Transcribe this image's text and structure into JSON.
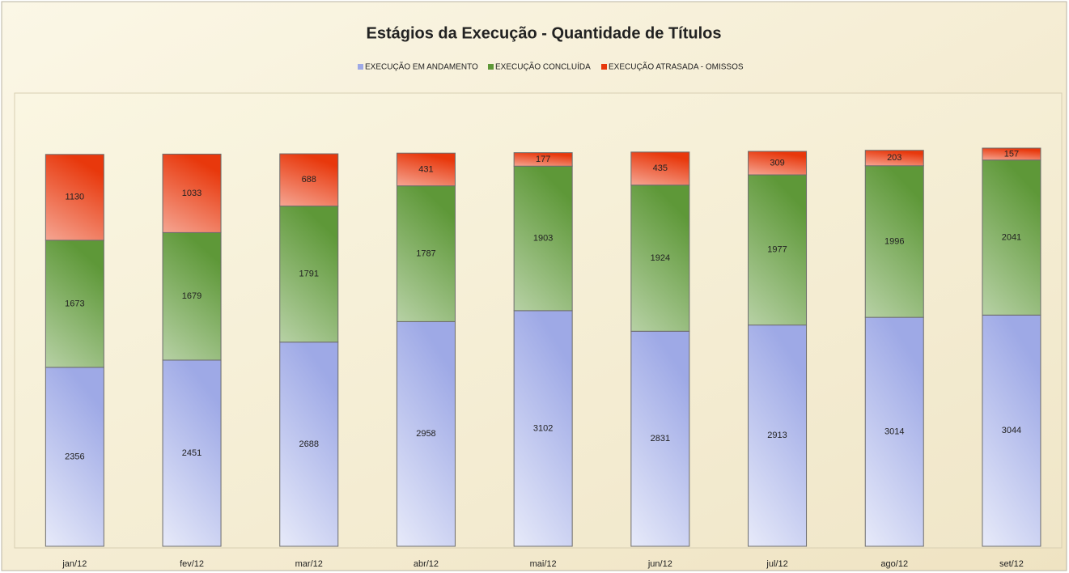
{
  "chart_data": {
    "type": "stacked_bar",
    "title": "Estágios da Execução - Quantidade de Títulos",
    "categories": [
      "jan/12",
      "fev/12",
      "mar/12",
      "abr/12",
      "mai/12",
      "jun/12",
      "jul/12",
      "ago/12",
      "set/12"
    ],
    "series": [
      {
        "name": "EXECUÇÃO EM ANDAMENTO",
        "color": "#9ea9e6",
        "values": [
          2356,
          2451,
          2688,
          2958,
          3102,
          2831,
          2913,
          3014,
          3044
        ]
      },
      {
        "name": "EXECUÇÃO CONCLUÍDA",
        "color": "#5e9838",
        "values": [
          1673,
          1679,
          1791,
          1787,
          1903,
          1924,
          1977,
          1996,
          2041
        ]
      },
      {
        "name": "EXECUÇÃO ATRASADA - OMISSOS",
        "color": "#e8380c",
        "values": [
          1130,
          1033,
          688,
          431,
          177,
          435,
          309,
          203,
          157
        ]
      }
    ],
    "legend": "top"
  }
}
